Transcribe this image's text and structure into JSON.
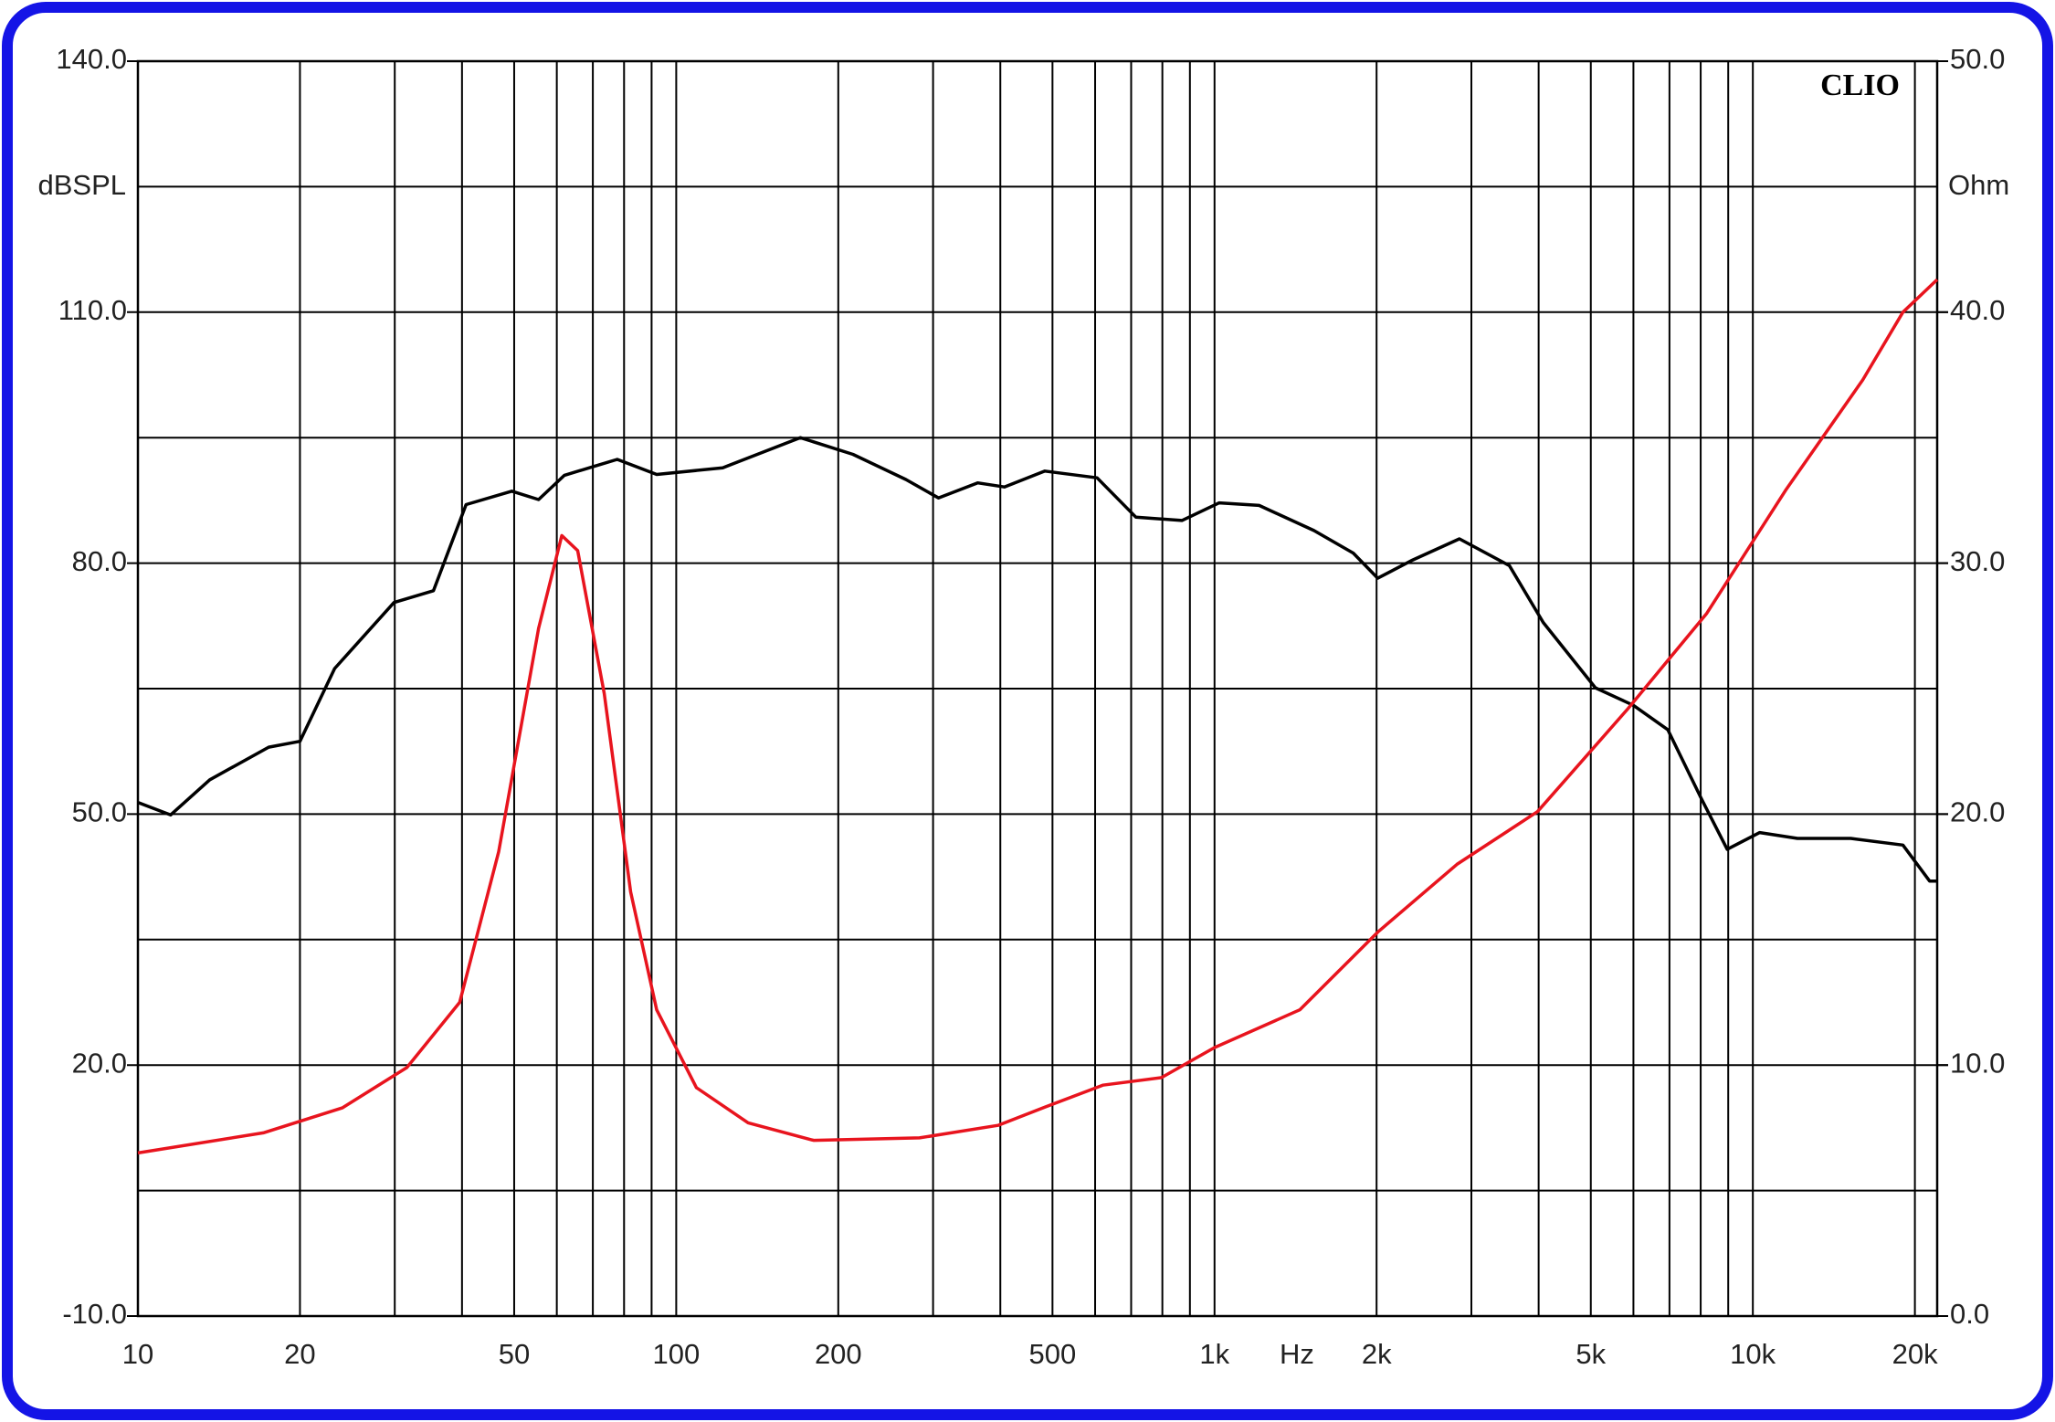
{
  "chart_data": {
    "type": "line",
    "brand": "CLIO",
    "y_label": "dBSPL",
    "y2_label": "Ohm",
    "x_label": "Hz",
    "log_x": true,
    "grid": true,
    "xlim": [
      10,
      22000
    ],
    "xticks": [
      10,
      20,
      50,
      100,
      200,
      500,
      {
        "value": 1000,
        "label": "1k"
      },
      {
        "value": 2000,
        "label": "2k"
      },
      {
        "value": 5000,
        "label": "5k"
      },
      {
        "value": 10000,
        "label": "10k"
      },
      {
        "value": 20000,
        "label": "20k"
      }
    ],
    "x_grid": [
      30,
      40,
      60,
      70,
      80,
      90,
      300,
      400,
      600,
      700,
      800,
      900,
      3000,
      4000,
      6000,
      7000,
      8000,
      9000
    ],
    "ylim": [
      -10,
      140
    ],
    "yticks": [
      {
        "value": -10,
        "label": "-10.0"
      },
      {
        "value": 20,
        "label": "20.0"
      },
      {
        "value": 50,
        "label": "50.0"
      },
      {
        "value": 80,
        "label": "80.0"
      },
      {
        "value": 110,
        "label": "110.0"
      },
      {
        "value": 140,
        "label": "140.0"
      }
    ],
    "y_grid": [
      5,
      35,
      65,
      95,
      125
    ],
    "y2lim": [
      0,
      50
    ],
    "y2ticks": [
      {
        "value": 0,
        "label": "0.0"
      },
      {
        "value": 10,
        "label": "10.0"
      },
      {
        "value": 20,
        "label": "20.0"
      },
      {
        "value": 30,
        "label": "30.0"
      },
      {
        "value": 40,
        "label": "40.0"
      },
      {
        "value": 50,
        "label": "50.0"
      }
    ],
    "series": [
      {
        "color": "#000000",
        "axis": "y",
        "x": [
          10,
          11.5,
          13.6,
          17.5,
          20,
          23.2,
          29.9,
          35.4,
          40.7,
          49.5,
          55.5,
          62,
          77.7,
          92,
          122,
          170,
          213,
          267,
          307,
          363,
          407,
          484,
          605,
          714,
          870,
          1020,
          1210,
          1530,
          1810,
          2010,
          2320,
          2850,
          3530,
          4080,
          5100,
          6000,
          6950,
          8030,
          8960,
          10300,
          12100,
          15200,
          19000,
          21300,
          22000
        ],
        "values": [
          51.4,
          49.9,
          54.1,
          58.0,
          58.7,
          67.4,
          75.3,
          76.7,
          87.0,
          88.6,
          87.6,
          90.5,
          92.4,
          90.6,
          91.4,
          95.0,
          93.0,
          90.0,
          87.8,
          89.6,
          89.1,
          91.0,
          90.2,
          85.5,
          85.1,
          87.2,
          86.9,
          83.9,
          81.2,
          78.2,
          80.3,
          82.9,
          79.7,
          72.9,
          65.1,
          63.0,
          60.1,
          51.8,
          45.8,
          47.8,
          47.1,
          47.1,
          46.3,
          42.0,
          42.0
        ]
      },
      {
        "color": "#e8141e",
        "axis": "y2",
        "x": [
          10,
          17.1,
          24,
          31.6,
          39.6,
          46.8,
          55.5,
          61.3,
          65.6,
          73.5,
          82.3,
          92,
          109,
          136,
          180,
          283,
          396,
          494,
          620,
          797,
          1000,
          1440,
          2010,
          2820,
          3980,
          5860,
          8210,
          11500,
          16000,
          19000,
          22000
        ],
        "values": [
          6.5,
          7.3,
          8.3,
          9.9,
          12.5,
          18.5,
          27.4,
          31.1,
          30.5,
          24.8,
          16.9,
          12.2,
          9.1,
          7.7,
          7.0,
          7.1,
          7.6,
          8.4,
          9.2,
          9.5,
          10.7,
          12.2,
          15.3,
          18.0,
          20.1,
          24.2,
          28.0,
          32.9,
          37.3,
          40.0,
          41.3
        ]
      }
    ]
  }
}
